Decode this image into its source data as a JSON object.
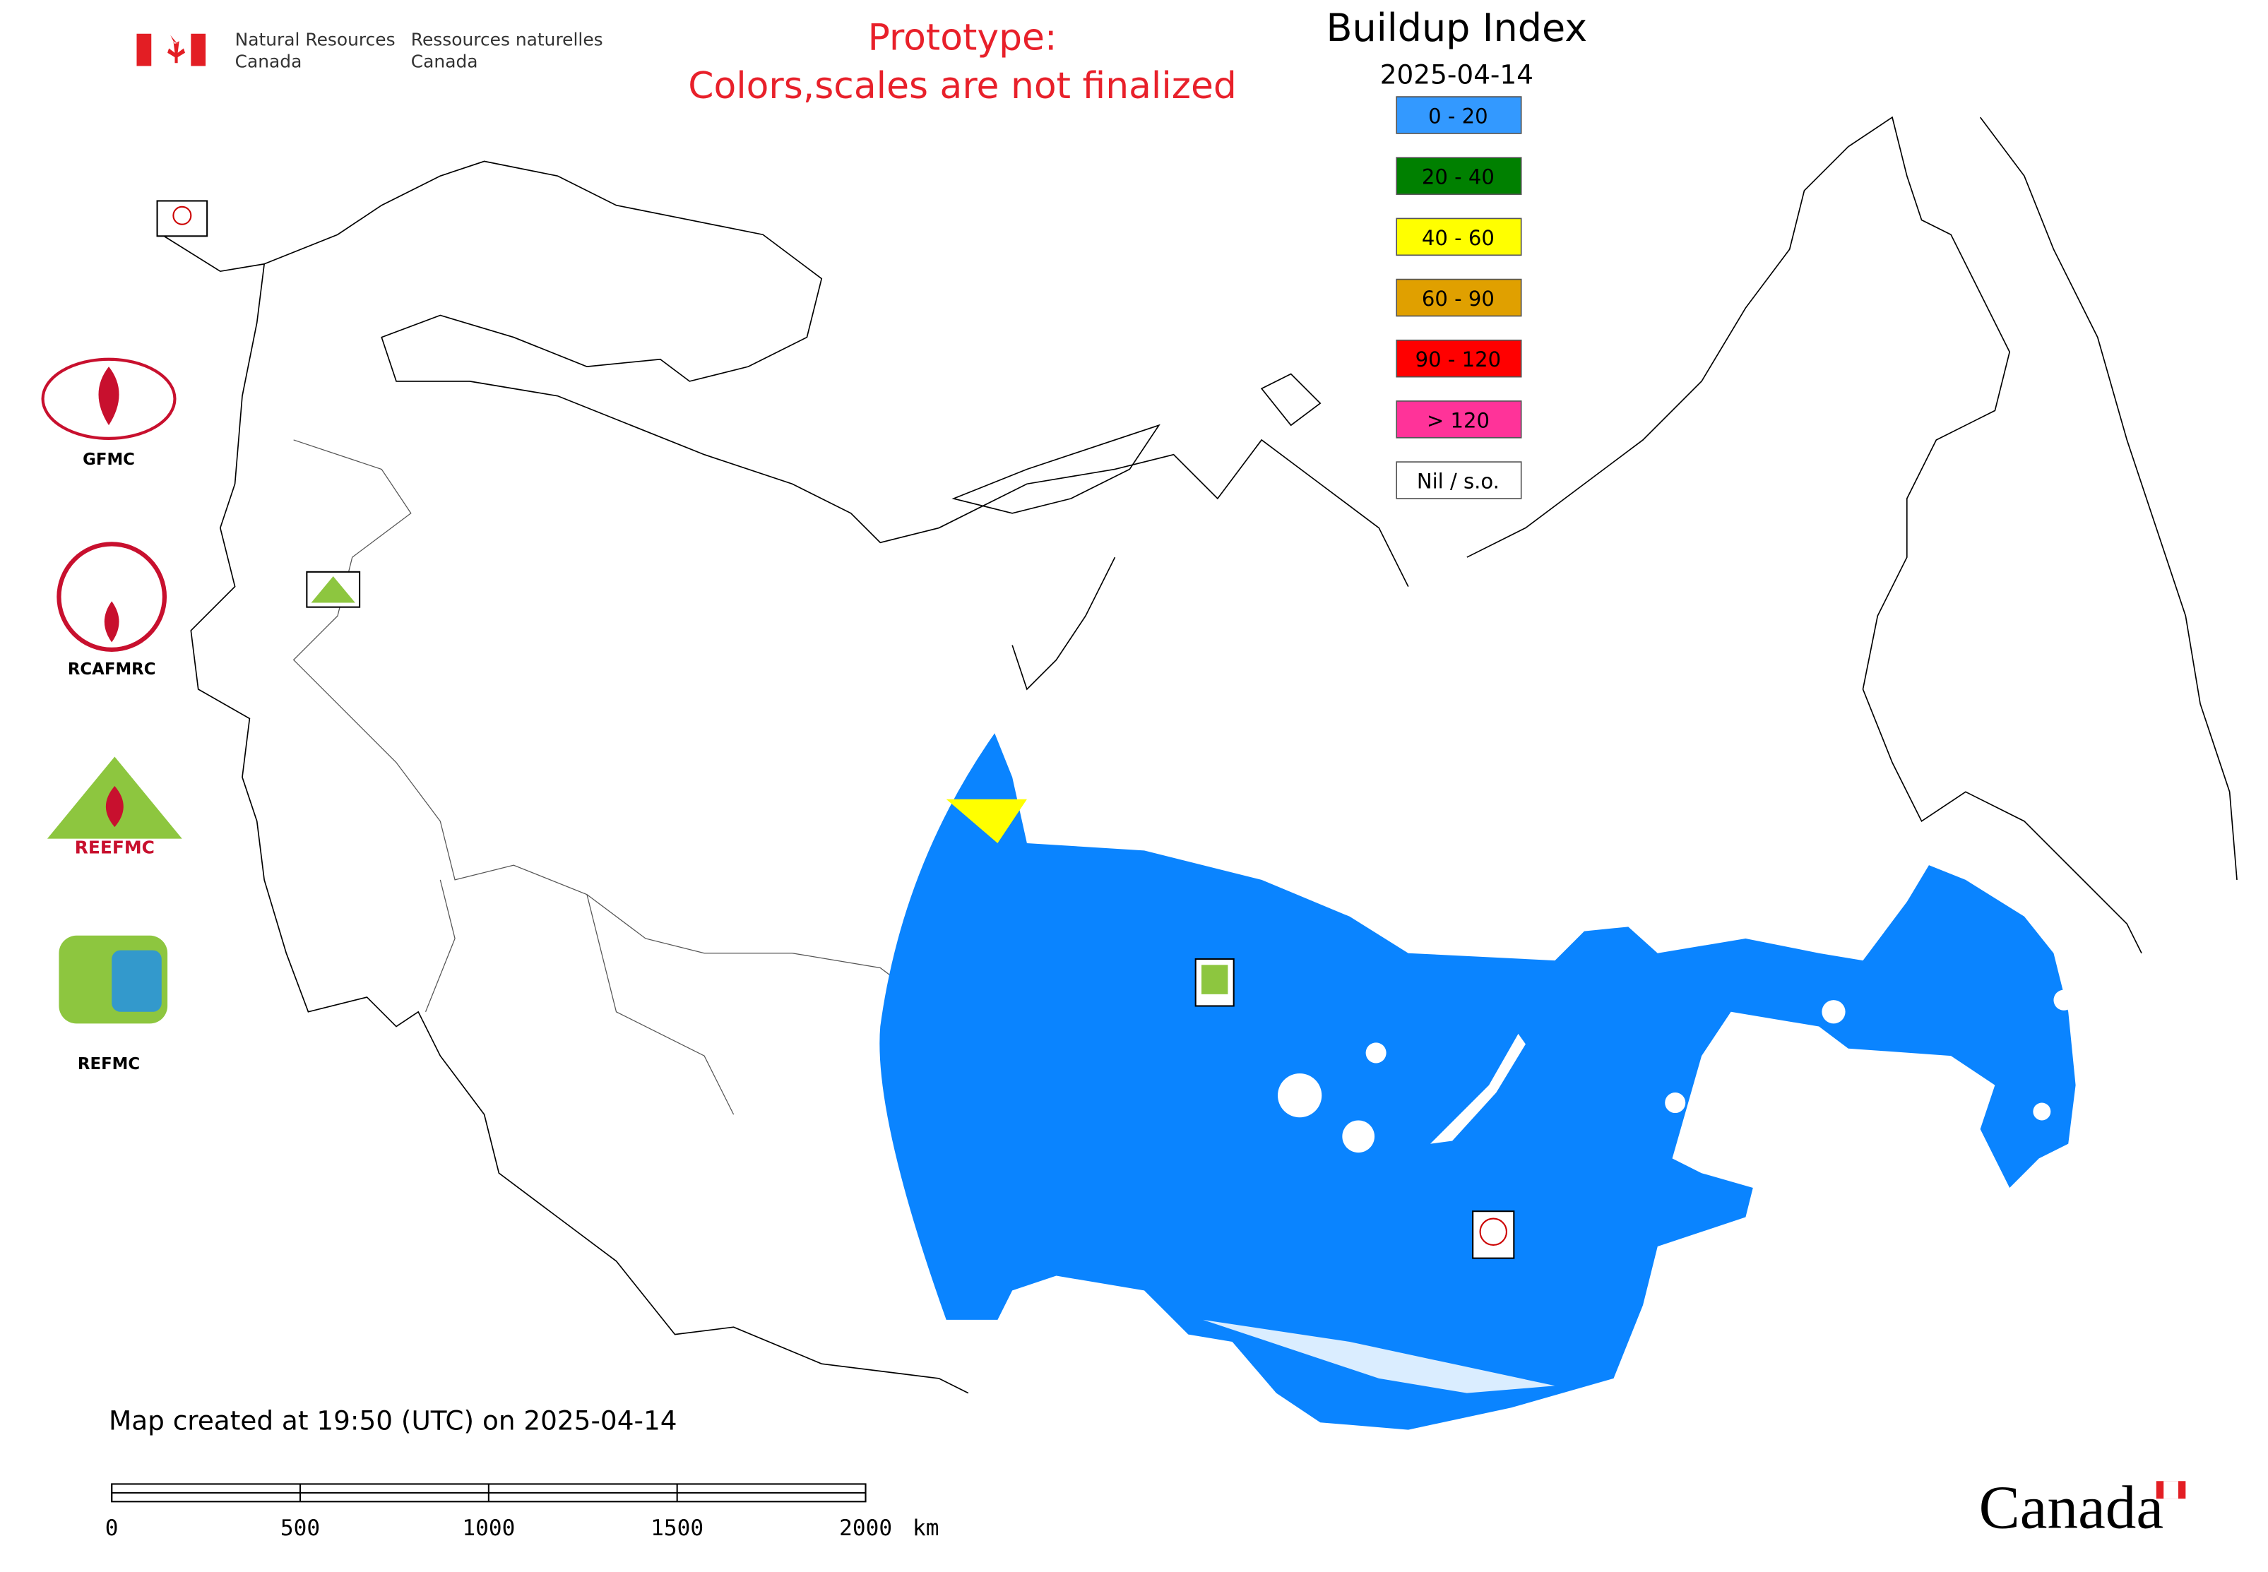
{
  "agency": {
    "en_line1": "Natural Resources",
    "en_line2": "Canada",
    "fr_line1": "Ressources naturelles",
    "fr_line2": "Canada"
  },
  "notice": [
    "Prototype:",
    "Colors,scales are not finalized"
  ],
  "title": "Buildup Index",
  "date": "2025-04-14",
  "legend": [
    {
      "label": "0 - 20",
      "color": "#3399ff"
    },
    {
      "label": "20 - 40",
      "color": "#008000"
    },
    {
      "label": "40 - 60",
      "color": "#ffff00"
    },
    {
      "label": "60 - 90",
      "color": "#e0a000"
    },
    {
      "label": "90 - 120",
      "color": "#ff0000"
    },
    {
      "label": "> 120",
      "color": "#ff3399"
    },
    {
      "label": "Nil / s.o.",
      "color": "#ffffff"
    }
  ],
  "logos": [
    "GFMC",
    "RCAFMRC",
    "REEFMC",
    "REFMC"
  ],
  "footer": "Map created at 19:50 (UTC) on 2025-04-14",
  "scale_bar": {
    "ticks": [
      0,
      500,
      1000,
      1500,
      2000
    ],
    "unit": "km"
  },
  "wordmark": "Canada"
}
